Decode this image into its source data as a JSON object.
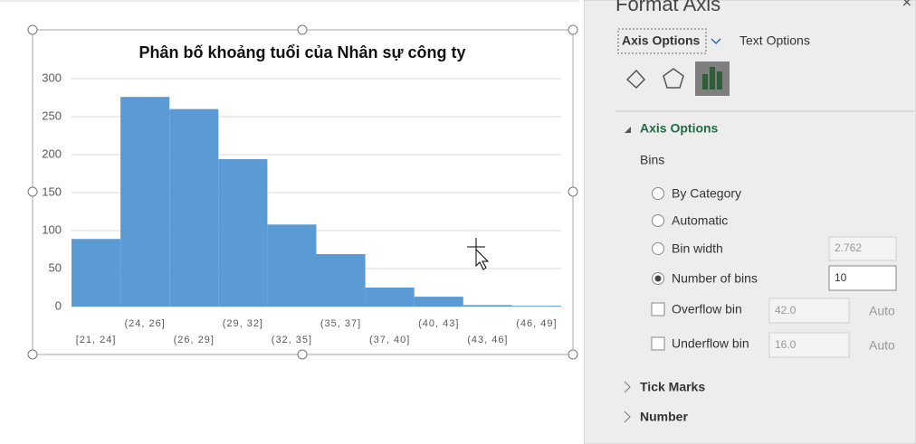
{
  "chart_data": {
    "type": "bar",
    "title": "Phân bố khoảng tuổi của Nhân sự công ty",
    "categories": [
      "[21, 24]",
      "(24, 26]",
      "(26, 29]",
      "(29, 32]",
      "(32, 35]",
      "(35, 37]",
      "(37, 40]",
      "(40, 43]",
      "(43, 46]",
      "(46, 49]"
    ],
    "values": [
      89,
      276,
      260,
      194,
      108,
      69,
      25,
      13,
      2,
      1
    ],
    "color": "#5b9bd5",
    "ylim": [
      0,
      300
    ],
    "yticks": [
      0,
      50,
      100,
      150,
      200,
      250,
      300
    ],
    "grid": true
  },
  "panel": {
    "title": "Format Axis",
    "tabs": [
      "Axis Options",
      "Text Options"
    ],
    "section": "Axis Options",
    "group": "Bins",
    "options": [
      "By Category",
      "Automatic",
      "Bin width",
      "Number of bins"
    ],
    "bin_width": "2.762",
    "number_of_bins": "10",
    "overflow": {
      "label": "Overflow bin",
      "value": "42.0",
      "auto": "Auto"
    },
    "underflow": {
      "label": "Underflow bin",
      "value": "16.0",
      "auto": "Auto"
    },
    "collapsed": [
      "Tick Marks",
      "Number"
    ]
  }
}
